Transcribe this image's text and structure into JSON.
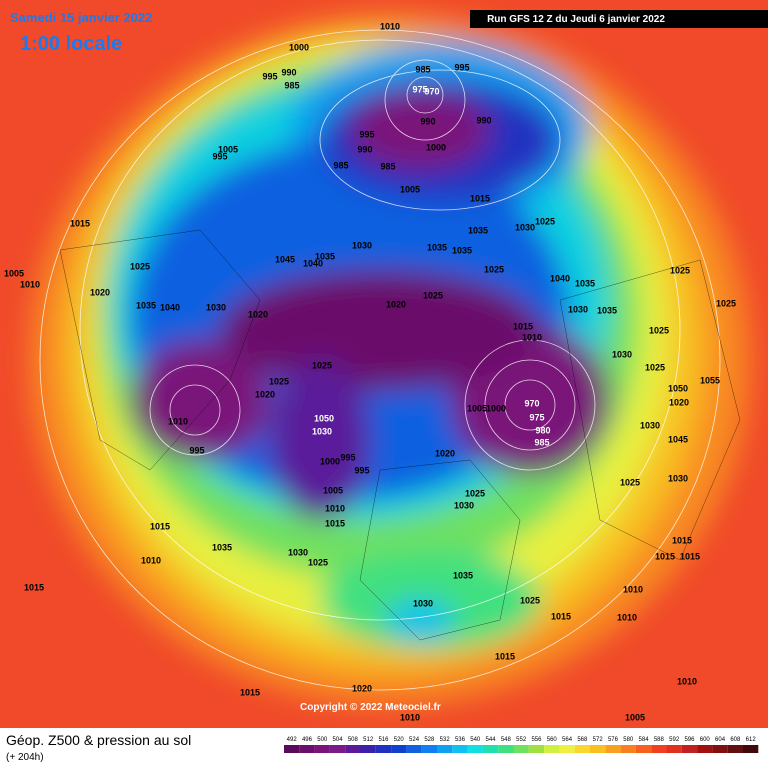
{
  "header": {
    "date": "Samedi 15 janvier 2022",
    "time": "1:00 locale",
    "run": "Run GFS 12 Z du Jeudi 6 janvier 2022"
  },
  "footer": {
    "title": "Géop. Z500 & pression au sol",
    "lead": "(+ 204h)",
    "copyright": "Copyright © 2022 Meteociel.fr"
  },
  "scale": {
    "values": [
      492,
      496,
      500,
      504,
      508,
      512,
      516,
      520,
      524,
      528,
      532,
      536,
      540,
      544,
      548,
      552,
      556,
      560,
      564,
      568,
      572,
      576,
      580,
      584,
      588,
      592,
      596,
      600,
      604,
      608,
      612
    ],
    "colors": [
      "#5a0a5a",
      "#6a0f6a",
      "#7a147a",
      "#7a1a8a",
      "#5a1a9a",
      "#3a20aa",
      "#2030c0",
      "#1040d0",
      "#1060e0",
      "#1080f0",
      "#10a0f0",
      "#10c0f0",
      "#10e0e0",
      "#20e0b0",
      "#40e080",
      "#70e060",
      "#a0e040",
      "#d0f040",
      "#f0f040",
      "#f8d830",
      "#f8c020",
      "#f8a020",
      "#f88020",
      "#f86020",
      "#f04020",
      "#e03020",
      "#c02020",
      "#a01010",
      "#801010",
      "#601010",
      "#400808"
    ]
  },
  "isobars": [
    "1010",
    "1000",
    "990",
    "995",
    "985",
    "985",
    "995",
    "975",
    "970",
    "990",
    "990",
    "995",
    "990",
    "1000",
    "985",
    "985",
    "1005",
    "1015",
    "1005",
    "995",
    "1015",
    "1025",
    "1005",
    "1010",
    "1020",
    "1035",
    "1040",
    "1030",
    "1045",
    "1040",
    "1035",
    "1030",
    "1035",
    "1035",
    "1035",
    "1030",
    "1025",
    "1025",
    "1040",
    "1035",
    "1030",
    "1035",
    "1025",
    "1025",
    "1020",
    "1020",
    "1025",
    "1015",
    "1010",
    "1025",
    "1030",
    "1025",
    "1025",
    "1020",
    "1025",
    "1010",
    "1050",
    "1030",
    "995",
    "995",
    "1000",
    "970",
    "975",
    "980",
    "985",
    "1005",
    "1000",
    "1020",
    "995",
    "1025",
    "1030",
    "1005",
    "1010",
    "1015",
    "1030",
    "1045",
    "1025",
    "1030",
    "1020",
    "1050",
    "1055",
    "1015",
    "1035",
    "1010",
    "1030",
    "1025",
    "1015",
    "1015",
    "1015",
    "1035",
    "1010",
    "1030",
    "1025",
    "1015",
    "1010",
    "1015",
    "1015",
    "1015",
    "1020",
    "1010",
    "1010",
    "1005"
  ]
}
